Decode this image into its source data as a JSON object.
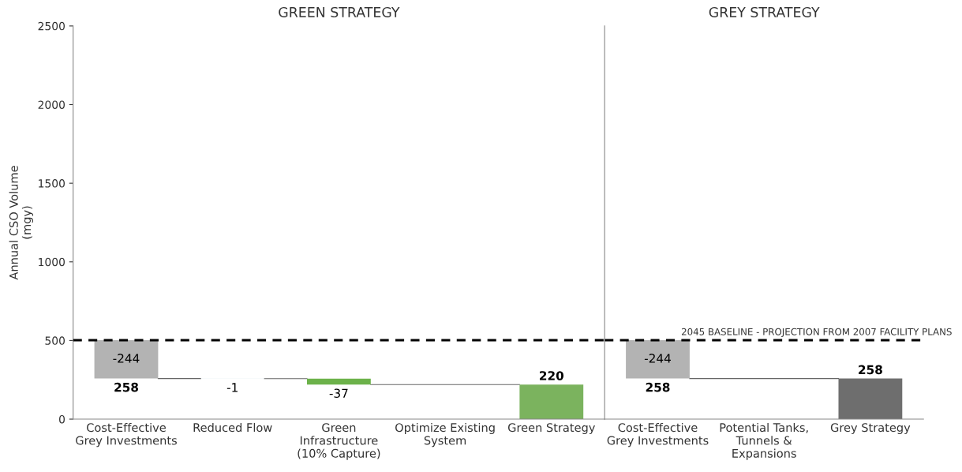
{
  "chart_data": [
    {
      "type": "bar",
      "title": "GREEN STRATEGY",
      "ylabel": "Annual CSO Volume\n(mgy)",
      "categories": [
        "Cost-Effective\nGrey Investments",
        "Reduced Flow",
        "Green\nInfrastructure\n(10% Capture)",
        "Optimize Existing\nSystem",
        "Green Strategy"
      ],
      "values": [
        -244,
        -1,
        -37,
        null,
        220
      ],
      "base": [
        502,
        258,
        257,
        null,
        0
      ],
      "colors": [
        "#b3b3b3",
        "#dde9f0",
        "#6cb24a",
        "#ffffff",
        "#7bb35e"
      ],
      "value_labels": [
        "-244",
        "-1",
        "-37",
        null,
        "220"
      ],
      "annotations": [
        {
          "text": "258",
          "x": "Cost-Effective\nGrey Investments",
          "y": 258
        }
      ],
      "ylim": [
        0,
        2500
      ],
      "yticks": [
        0,
        500,
        1000,
        1500,
        2000,
        2500
      ],
      "ref_lines": [
        {
          "axis": "y",
          "value": 502,
          "line_style": "dashed",
          "color": "#000000"
        }
      ],
      "grid": false
    },
    {
      "type": "bar",
      "title": "GREY STRATEGY",
      "categories": [
        "Cost-Effective\nGrey Investments",
        "Potential Tanks,\nTunnels &\nExpansions",
        "Grey Strategy"
      ],
      "values": [
        -244,
        null,
        258
      ],
      "base": [
        502,
        null,
        0
      ],
      "colors": [
        "#b3b3b3",
        "#ffffff",
        "#6e6e6e"
      ],
      "value_labels": [
        "-244",
        null,
        "258"
      ],
      "annotations": [
        {
          "text": "258",
          "x": "Cost-Effective\nGrey Investments",
          "y": 258
        }
      ],
      "ylim": [
        0,
        2500
      ],
      "tick_labels": "x",
      "ref_lines": [
        {
          "axis": "y",
          "value": 502,
          "label": "2045 BASELINE - PROJECTION FROM 2007 FACILITY PLANS",
          "line_style": "dashed",
          "color": "#000000"
        }
      ],
      "grid": false
    }
  ]
}
